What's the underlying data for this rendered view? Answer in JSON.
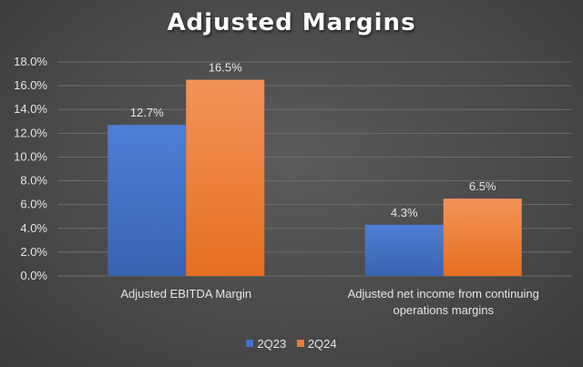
{
  "chart_data": {
    "type": "bar",
    "title": "Adjusted Margins",
    "categories": [
      [
        "Adjusted EBITDA Margin"
      ],
      [
        "Adjusted net income from continuing",
        "operations margins"
      ]
    ],
    "series": [
      {
        "name": "2Q23",
        "values": [
          12.7,
          4.3
        ],
        "labels": [
          "12.7%",
          "4.3%"
        ],
        "color": "#4472c4"
      },
      {
        "name": "2Q24",
        "values": [
          16.5,
          6.5
        ],
        "labels": [
          "16.5%",
          "6.5%"
        ],
        "color": "#ed7d31"
      }
    ],
    "y_ticks": [
      "0.0%",
      "2.0%",
      "4.0%",
      "6.0%",
      "8.0%",
      "10.0%",
      "12.0%",
      "14.0%",
      "16.0%",
      "18.0%"
    ],
    "ylim": [
      0,
      18
    ],
    "grid": true,
    "legend_position": "bottom"
  }
}
